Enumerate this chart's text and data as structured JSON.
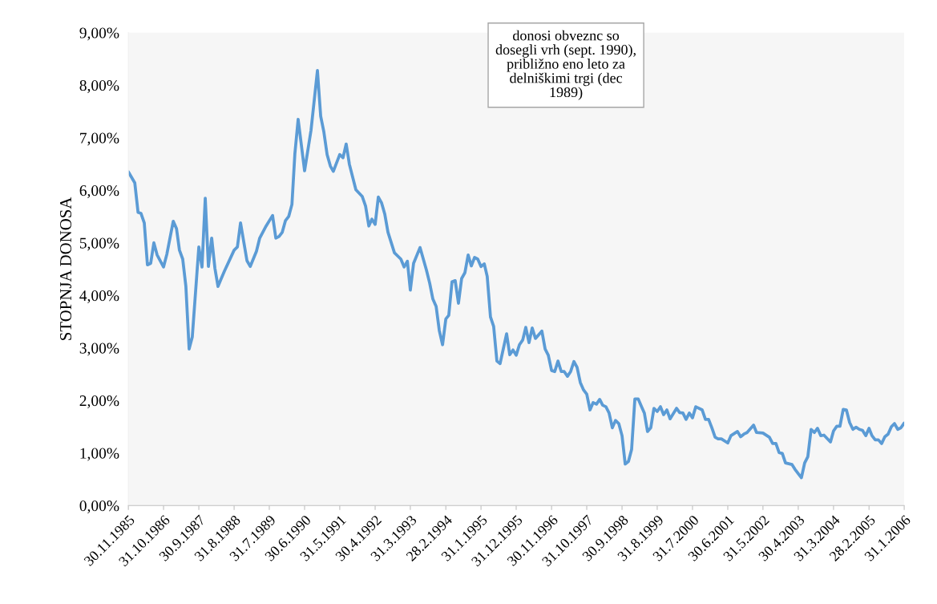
{
  "chart_data": {
    "type": "line",
    "ylabel": "STOPNJA DONOSA",
    "annotations": [
      "donosi obveznc so\ndosegli vrh (sept. 1990),\npribližno eno leto za\ndelniškimi trgi (dec\n1989)"
    ],
    "x": [
      "1985-11",
      "1986-01",
      "1986-02",
      "1986-03",
      "1986-04",
      "1986-05",
      "1986-06",
      "1986-07",
      "1986-08",
      "1986-10",
      "1986-11",
      "1987-01",
      "1987-02",
      "1987-03",
      "1987-04",
      "1987-05",
      "1987-06",
      "1987-07",
      "1987-09",
      "1987-10",
      "1987-11",
      "1987-12",
      "1988-01",
      "1988-02",
      "1988-03",
      "1988-04",
      "1988-05",
      "1988-08",
      "1988-09",
      "1988-10",
      "1988-12",
      "1989-01",
      "1989-03",
      "1989-04",
      "1989-06",
      "1989-08",
      "1989-09",
      "1989-10",
      "1989-11",
      "1989-12",
      "1990-01",
      "1990-02",
      "1990-03",
      "1990-04",
      "1990-06",
      "1990-08",
      "1990-10",
      "1990-11",
      "1990-12",
      "1991-01",
      "1991-02",
      "1991-03",
      "1991-05",
      "1991-06",
      "1991-07",
      "1991-08",
      "1991-10",
      "1991-12",
      "1992-01",
      "1992-02",
      "1992-03",
      "1992-04",
      "1992-05",
      "1992-06",
      "1992-07",
      "1992-08",
      "1992-10",
      "1992-12",
      "1993-01",
      "1993-02",
      "1993-03",
      "1993-04",
      "1993-06",
      "1993-08",
      "1993-09",
      "1993-10",
      "1993-11",
      "1993-12",
      "1994-01",
      "1994-02",
      "1994-03",
      "1994-04",
      "1994-05",
      "1994-06",
      "1994-07",
      "1994-08",
      "1994-09",
      "1994-10",
      "1994-11",
      "1994-12",
      "1995-01",
      "1995-02",
      "1995-03",
      "1995-04",
      "1995-05",
      "1995-06",
      "1995-07",
      "1995-09",
      "1995-10",
      "1995-11",
      "1995-12",
      "1996-01",
      "1996-02",
      "1996-03",
      "1996-04",
      "1996-05",
      "1996-06",
      "1996-08",
      "1996-09",
      "1996-10",
      "1996-11",
      "1996-12",
      "1997-01",
      "1997-02",
      "1997-03",
      "1997-04",
      "1997-05",
      "1997-06",
      "1997-07",
      "1997-08",
      "1997-09",
      "1997-10",
      "1997-11",
      "1997-12",
      "1998-01",
      "1998-02",
      "1998-03",
      "1998-04",
      "1998-05",
      "1998-06",
      "1998-07",
      "1998-08",
      "1998-09",
      "1998-10",
      "1998-11",
      "1998-12",
      "1999-01",
      "1999-02",
      "1999-03",
      "1999-04",
      "1999-05",
      "1999-06",
      "1999-07",
      "1999-08",
      "1999-09",
      "1999-10",
      "1999-11",
      "1999-12",
      "2000-02",
      "2000-03",
      "2000-04",
      "2000-05",
      "2000-06",
      "2000-07",
      "2000-08",
      "2000-10",
      "2000-11",
      "2000-12",
      "2001-01",
      "2001-02",
      "2001-03",
      "2001-04",
      "2001-06",
      "2001-07",
      "2001-09",
      "2001-10",
      "2001-11",
      "2001-12",
      "2002-02",
      "2002-03",
      "2002-05",
      "2002-07",
      "2002-08",
      "2002-09",
      "2002-10",
      "2002-11",
      "2002-12",
      "2003-02",
      "2003-03",
      "2003-05",
      "2003-06",
      "2003-07",
      "2003-08",
      "2003-09",
      "2003-10",
      "2003-11",
      "2003-12",
      "2004-02",
      "2004-03",
      "2004-04",
      "2004-05",
      "2004-06",
      "2004-07",
      "2004-08",
      "2004-09",
      "2004-10",
      "2004-11",
      "2004-12",
      "2005-01",
      "2005-02",
      "2005-03",
      "2005-04",
      "2005-05",
      "2005-06",
      "2005-07",
      "2005-08",
      "2005-09",
      "2005-10",
      "2005-11",
      "2005-12",
      "2006-01"
    ],
    "series": [
      {
        "color": "#5b9bd5",
        "values": [
          6.35,
          6.14,
          5.58,
          5.56,
          5.38,
          4.58,
          4.61,
          5.0,
          4.77,
          4.54,
          4.78,
          5.41,
          5.27,
          4.86,
          4.69,
          4.17,
          2.98,
          3.21,
          4.92,
          4.54,
          5.85,
          4.55,
          5.09,
          4.51,
          4.17,
          4.32,
          4.46,
          4.86,
          4.92,
          5.38,
          4.66,
          4.55,
          4.84,
          5.09,
          5.32,
          5.52,
          5.09,
          5.12,
          5.2,
          5.42,
          5.5,
          5.73,
          6.7,
          7.35,
          6.37,
          7.14,
          8.28,
          7.41,
          7.11,
          6.68,
          6.46,
          6.36,
          6.68,
          6.62,
          6.88,
          6.49,
          6.01,
          5.88,
          5.7,
          5.32,
          5.45,
          5.35,
          5.87,
          5.76,
          5.55,
          5.2,
          4.81,
          4.69,
          4.54,
          4.65,
          4.1,
          4.61,
          4.91,
          4.48,
          4.23,
          3.93,
          3.79,
          3.33,
          3.06,
          3.55,
          3.62,
          4.26,
          4.28,
          3.85,
          4.32,
          4.43,
          4.77,
          4.56,
          4.72,
          4.69,
          4.55,
          4.6,
          4.36,
          3.59,
          3.41,
          2.75,
          2.7,
          3.27,
          2.87,
          2.96,
          2.86,
          3.06,
          3.15,
          3.39,
          3.1,
          3.38,
          3.18,
          3.32,
          2.98,
          2.86,
          2.57,
          2.55,
          2.75,
          2.55,
          2.55,
          2.46,
          2.55,
          2.74,
          2.63,
          2.34,
          2.2,
          2.12,
          1.82,
          1.96,
          1.93,
          2.02,
          1.91,
          1.88,
          1.76,
          1.48,
          1.62,
          1.56,
          1.33,
          0.79,
          0.84,
          1.07,
          2.03,
          2.03,
          1.9,
          1.76,
          1.41,
          1.48,
          1.85,
          1.79,
          1.88,
          1.73,
          1.82,
          1.65,
          1.85,
          1.77,
          1.76,
          1.64,
          1.76,
          1.67,
          1.88,
          1.82,
          1.64,
          1.64,
          1.48,
          1.3,
          1.27,
          1.27,
          1.19,
          1.33,
          1.41,
          1.31,
          1.36,
          1.39,
          1.53,
          1.39,
          1.38,
          1.3,
          1.18,
          1.18,
          1.01,
          0.99,
          0.81,
          0.78,
          0.69,
          0.53,
          0.81,
          0.93,
          1.45,
          1.39,
          1.47,
          1.33,
          1.34,
          1.21,
          1.42,
          1.51,
          1.51,
          1.83,
          1.82,
          1.58,
          1.45,
          1.49,
          1.45,
          1.43,
          1.33,
          1.47,
          1.33,
          1.25,
          1.25,
          1.18,
          1.31,
          1.36,
          1.5,
          1.56,
          1.45,
          1.48,
          1.57
        ]
      }
    ],
    "xlim": [
      "1985-11",
      "2006-01"
    ],
    "xticks": [
      {
        "value": "1985-11",
        "label": "30.11.1985"
      },
      {
        "value": "1986-10",
        "label": "31.10.1986"
      },
      {
        "value": "1987-09",
        "label": "30.9.1987"
      },
      {
        "value": "1988-08",
        "label": "31.8.1988"
      },
      {
        "value": "1989-07",
        "label": "31.7.1989"
      },
      {
        "value": "1990-06",
        "label": "30.6.1990"
      },
      {
        "value": "1991-05",
        "label": "31.5.1991"
      },
      {
        "value": "1992-04",
        "label": "30.4.1992"
      },
      {
        "value": "1993-03",
        "label": "31.3.1993"
      },
      {
        "value": "1994-02",
        "label": "28.2.1994"
      },
      {
        "value": "1995-01",
        "label": "31.1.1995"
      },
      {
        "value": "1995-12",
        "label": "31.12.1995"
      },
      {
        "value": "1996-11",
        "label": "30.11.1996"
      },
      {
        "value": "1997-10",
        "label": "31.10.1997"
      },
      {
        "value": "1998-09",
        "label": "30.9.1998"
      },
      {
        "value": "1999-08",
        "label": "31.8.1999"
      },
      {
        "value": "2000-07",
        "label": "31.7.2000"
      },
      {
        "value": "2001-06",
        "label": "30.6.2001"
      },
      {
        "value": "2002-05",
        "label": "31.5.2002"
      },
      {
        "value": "2003-04",
        "label": "30.4.2003"
      },
      {
        "value": "2004-03",
        "label": "31.3.2004"
      },
      {
        "value": "2005-02",
        "label": "28.2.2005"
      },
      {
        "value": "2006-01",
        "label": "31.1.2006"
      }
    ],
    "ylim": [
      0,
      9
    ],
    "yticks": [
      {
        "value": 0,
        "label": "0,00%"
      },
      {
        "value": 1,
        "label": "1,00%"
      },
      {
        "value": 2,
        "label": "2,00%"
      },
      {
        "value": 3,
        "label": "3,00%"
      },
      {
        "value": 4,
        "label": "4,00%"
      },
      {
        "value": 5,
        "label": "5,00%"
      },
      {
        "value": 6,
        "label": "6,00%"
      },
      {
        "value": 7,
        "label": "7,00%"
      },
      {
        "value": 8,
        "label": "8,00%"
      },
      {
        "value": 9,
        "label": "9,00%"
      }
    ],
    "marker": "none",
    "line_style": "solid"
  }
}
